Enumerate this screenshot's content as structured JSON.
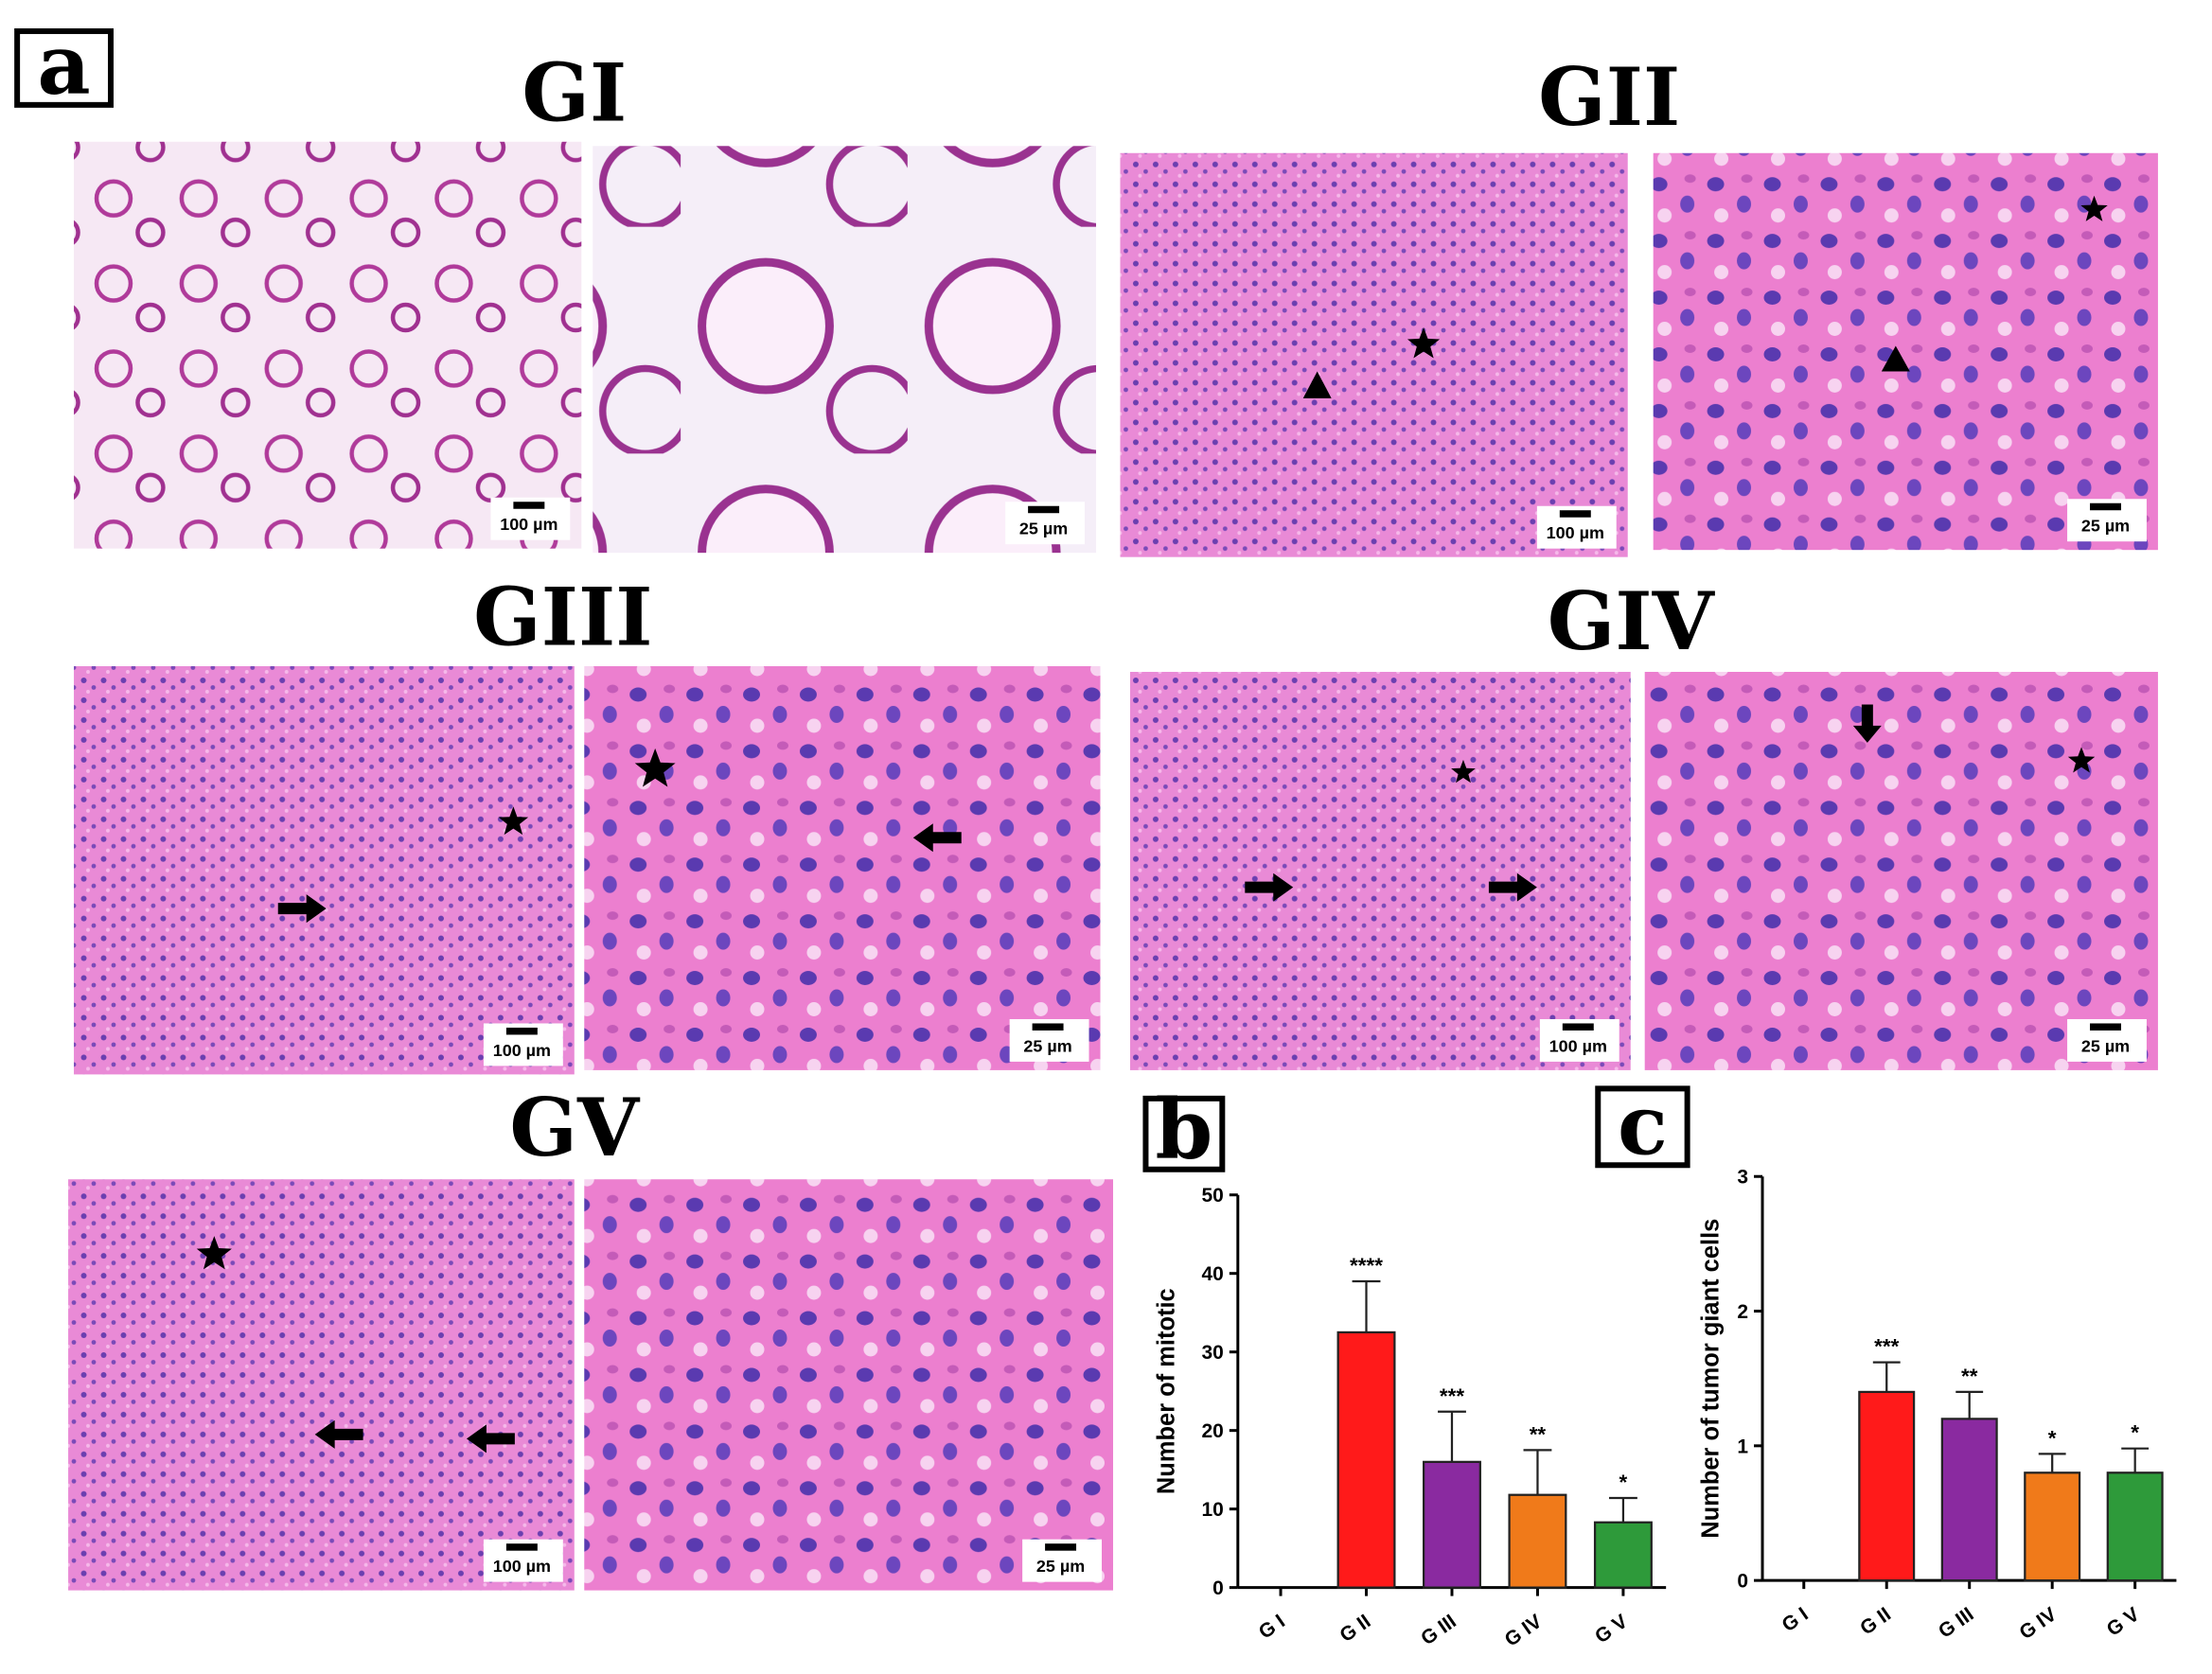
{
  "figure": {
    "label": "a",
    "panels": [
      {
        "title": "GI",
        "scale_bars": [
          "100 µm",
          "25 µm"
        ]
      },
      {
        "title": "GII",
        "scale_bars": [
          "100 µm",
          "25 µm"
        ]
      },
      {
        "title": "GIII",
        "scale_bars": [
          "100 µm",
          "25 µm"
        ]
      },
      {
        "title": "GIV",
        "scale_bars": [
          "100 µm",
          "25 µm"
        ]
      },
      {
        "title": "GV",
        "scale_bars": [
          "100 µm",
          "25 µm"
        ]
      }
    ]
  },
  "chart_data": [
    {
      "type": "bar",
      "label": "b",
      "ylabel": "Number of mitotic",
      "categories": [
        "G I",
        "G II",
        "G III",
        "G IV",
        "G V"
      ],
      "values": [
        0,
        32.5,
        16,
        11.8,
        8.3
      ],
      "errors": [
        null,
        6.5,
        6.4,
        5.7,
        3.1
      ],
      "annotations": [
        null,
        "****",
        "***",
        "**",
        "*"
      ],
      "colors": [
        "#e8e8e8",
        "#ff1a1a",
        "#8a2aa0",
        "#f07a1a",
        "#2e9a3a"
      ],
      "ylim": [
        0,
        50
      ],
      "yticks": [
        0,
        10,
        20,
        30,
        40,
        50
      ]
    },
    {
      "type": "bar",
      "label": "c",
      "ylabel": "Number of tumor giant cells",
      "categories": [
        "G I",
        "G II",
        "G III",
        "G IV",
        "G V"
      ],
      "values": [
        0,
        1.4,
        1.2,
        0.8,
        0.8
      ],
      "errors": [
        null,
        0.22,
        0.2,
        0.14,
        0.18
      ],
      "annotations": [
        null,
        "***",
        "**",
        "*",
        "*"
      ],
      "colors": [
        "#e8e8e8",
        "#ff1a1a",
        "#8a2aa0",
        "#f07a1a",
        "#2e9a3a"
      ],
      "ylim": [
        0,
        3
      ],
      "yticks": [
        0,
        1,
        2,
        3
      ]
    }
  ]
}
